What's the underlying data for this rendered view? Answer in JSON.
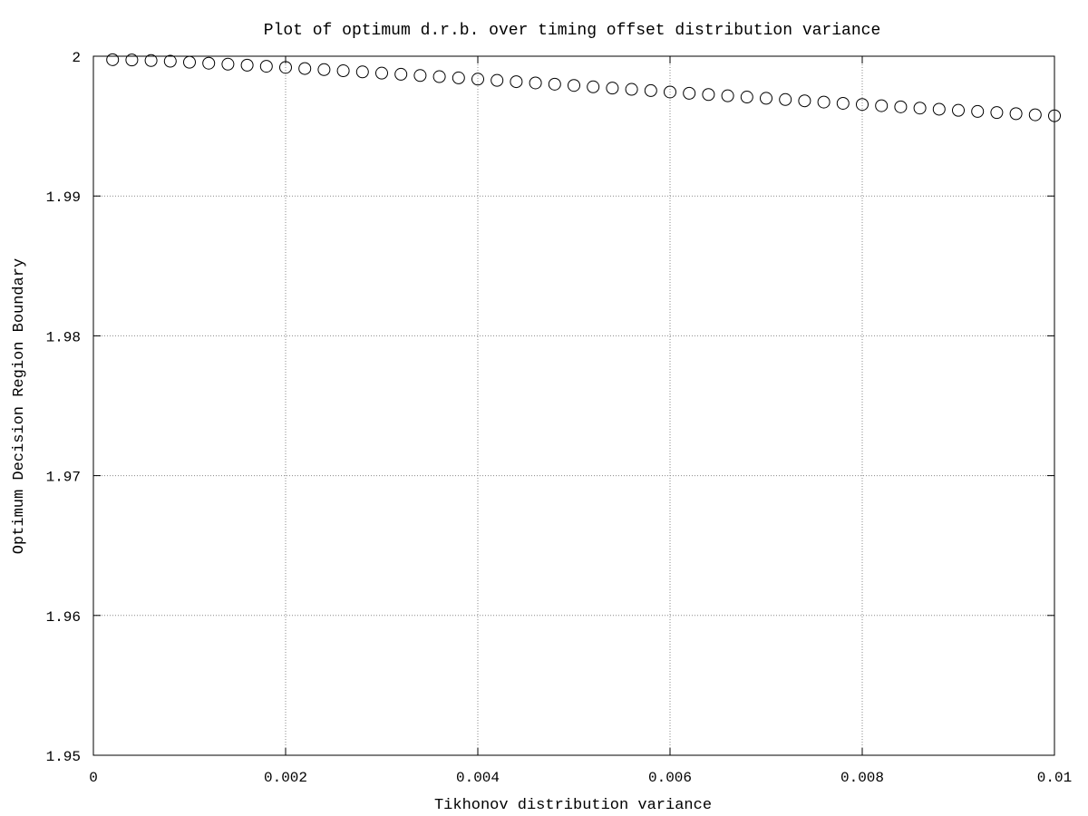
{
  "chart_data": {
    "type": "scatter",
    "title": "Plot of optimum d.r.b. over timing offset distribution variance",
    "xlabel": "Tikhonov distribution variance",
    "ylabel": "Optimum Decision Region Boundary",
    "xlim": [
      0,
      0.01
    ],
    "ylim": [
      1.95,
      2
    ],
    "xticks": [
      0,
      0.002,
      0.004,
      0.006,
      0.008,
      0.01
    ],
    "xtick_labels": [
      "0",
      "0.002",
      "0.004",
      "0.006",
      "0.008",
      "0.01"
    ],
    "yticks": [
      1.95,
      1.96,
      1.97,
      1.98,
      1.99,
      2
    ],
    "ytick_labels": [
      "1.95",
      "1.96",
      "1.97",
      "1.98",
      "1.99",
      "2"
    ],
    "grid": true,
    "marker": "open-circle",
    "series": [
      {
        "x": [
          0.0002,
          0.0004,
          0.0006,
          0.0008,
          0.001,
          0.0012,
          0.0014,
          0.0016,
          0.0018,
          0.002,
          0.0022,
          0.0024,
          0.0026,
          0.0028,
          0.003,
          0.0032,
          0.0034,
          0.0036,
          0.0038,
          0.004,
          0.0042,
          0.0044,
          0.0046,
          0.0048,
          0.005,
          0.0052,
          0.0054,
          0.0056,
          0.0058,
          0.006,
          0.0062,
          0.0064,
          0.0066,
          0.0068,
          0.007,
          0.0072,
          0.0074,
          0.0076,
          0.0078,
          0.008,
          0.0082,
          0.0084,
          0.0086,
          0.0088,
          0.009,
          0.0092,
          0.0094,
          0.0096,
          0.0098,
          0.01
        ],
        "y": [
          1.99975,
          1.99973,
          1.99969,
          1.99964,
          1.99957,
          1.9995,
          1.99943,
          1.99936,
          1.99928,
          1.9992,
          1.99912,
          1.99904,
          1.99896,
          1.99888,
          1.99879,
          1.99871,
          1.99862,
          1.99854,
          1.99845,
          1.99836,
          1.99827,
          1.99818,
          1.99809,
          1.998,
          1.99791,
          1.99781,
          1.99772,
          1.99763,
          1.99754,
          1.99744,
          1.99735,
          1.99726,
          1.99717,
          1.99708,
          1.99699,
          1.9969,
          1.99681,
          1.99672,
          1.99663,
          1.99655,
          1.99646,
          1.99638,
          1.99629,
          1.99621,
          1.99613,
          1.99605,
          1.99597,
          1.99589,
          1.99581,
          1.99574
        ]
      }
    ]
  }
}
